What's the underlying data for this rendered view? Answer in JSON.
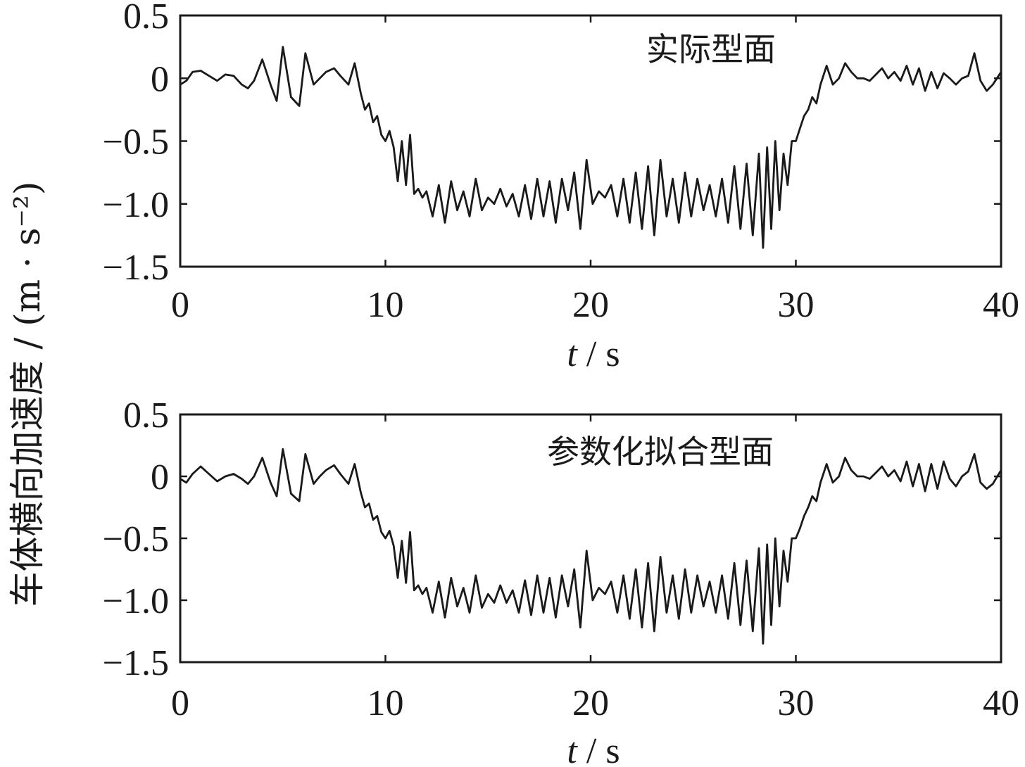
{
  "chart_data": [
    {
      "type": "line",
      "annotation": "实际型面",
      "xlabel_var": "t",
      "xlabel_unit": " / s",
      "ylabel": "车体横向加速度 / (m · s⁻²)",
      "xlim": [
        0,
        40
      ],
      "ylim": [
        -1.5,
        0.5
      ],
      "xticks": [
        "0",
        "10",
        "20",
        "30",
        "40"
      ],
      "yticks": [
        "0.5",
        "0",
        "−0.5",
        "−1.0",
        "−1.5"
      ],
      "xtick_values": [
        0,
        10,
        20,
        30,
        40
      ],
      "ytick_values": [
        0.5,
        0,
        -0.5,
        -1.0,
        -1.5
      ],
      "color": "#1a1a1a",
      "series": [
        {
          "x": [
            0,
            0.3,
            0.6,
            1.0,
            1.4,
            1.8,
            2.2,
            2.6,
            3.0,
            3.3,
            3.6,
            4.0,
            4.4,
            4.7,
            5.0,
            5.4,
            5.8,
            6.1,
            6.5,
            6.8,
            7.1,
            7.5,
            7.8,
            8.2,
            8.5,
            8.8,
            9.0,
            9.2,
            9.4,
            9.6,
            9.8,
            10.0,
            10.2,
            10.4,
            10.6,
            10.8,
            11.0,
            11.2,
            11.4,
            11.6,
            11.8,
            12.0,
            12.3,
            12.6,
            12.9,
            13.2,
            13.5,
            13.8,
            14.1,
            14.4,
            14.7,
            15.0,
            15.3,
            15.6,
            15.9,
            16.2,
            16.5,
            16.8,
            17.1,
            17.4,
            17.7,
            18.0,
            18.3,
            18.6,
            18.9,
            19.2,
            19.5,
            19.8,
            20.1,
            20.4,
            20.7,
            21.0,
            21.3,
            21.6,
            21.9,
            22.2,
            22.5,
            22.8,
            23.1,
            23.4,
            23.7,
            24.0,
            24.3,
            24.6,
            24.9,
            25.2,
            25.5,
            25.8,
            26.1,
            26.4,
            26.7,
            27.0,
            27.3,
            27.6,
            27.9,
            28.2,
            28.4,
            28.6,
            28.8,
            29.0,
            29.2,
            29.4,
            29.6,
            29.8,
            30.0,
            30.2,
            30.4,
            30.6,
            30.8,
            31.0,
            31.2,
            31.5,
            31.8,
            32.1,
            32.4,
            32.7,
            33.0,
            33.3,
            33.6,
            33.9,
            34.2,
            34.5,
            34.8,
            35.1,
            35.4,
            35.7,
            36.0,
            36.3,
            36.6,
            36.9,
            37.2,
            37.5,
            37.8,
            38.1,
            38.4,
            38.7,
            39.0,
            39.3,
            39.6,
            40.0
          ],
          "y": [
            -0.05,
            -0.02,
            0.05,
            0.06,
            0.02,
            -0.02,
            0.03,
            0.02,
            -0.05,
            -0.08,
            -0.02,
            0.15,
            -0.05,
            -0.18,
            0.25,
            -0.15,
            -0.22,
            0.2,
            -0.05,
            0.0,
            0.05,
            0.08,
            0.02,
            -0.05,
            0.12,
            -0.12,
            -0.25,
            -0.2,
            -0.35,
            -0.3,
            -0.45,
            -0.5,
            -0.42,
            -0.55,
            -0.82,
            -0.5,
            -0.85,
            -0.45,
            -0.92,
            -0.88,
            -0.95,
            -0.9,
            -1.1,
            -0.85,
            -1.15,
            -0.82,
            -1.05,
            -0.9,
            -1.1,
            -0.8,
            -1.05,
            -0.95,
            -1.0,
            -0.88,
            -1.02,
            -0.92,
            -1.1,
            -0.85,
            -1.12,
            -0.8,
            -1.1,
            -0.82,
            -1.15,
            -0.8,
            -1.05,
            -0.75,
            -1.2,
            -0.65,
            -1.0,
            -0.9,
            -0.95,
            -0.85,
            -1.1,
            -0.8,
            -1.15,
            -0.75,
            -1.2,
            -0.7,
            -1.25,
            -0.65,
            -1.1,
            -0.8,
            -1.15,
            -0.75,
            -1.1,
            -0.8,
            -1.05,
            -0.85,
            -1.1,
            -0.8,
            -1.15,
            -0.7,
            -1.2,
            -0.68,
            -1.25,
            -0.6,
            -1.35,
            -0.55,
            -1.2,
            -0.5,
            -1.05,
            -0.6,
            -0.85,
            -0.5,
            -0.5,
            -0.4,
            -0.3,
            -0.25,
            -0.15,
            -0.2,
            -0.05,
            0.1,
            -0.05,
            0.0,
            0.12,
            0.05,
            0.0,
            0.0,
            -0.02,
            0.03,
            0.08,
            0.0,
            0.05,
            -0.02,
            0.1,
            -0.05,
            0.08,
            -0.1,
            0.05,
            -0.08,
            0.04,
            0.0,
            -0.05,
            0.0,
            0.02,
            0.2,
            -0.02,
            -0.1,
            -0.05,
            0.05
          ]
        }
      ]
    },
    {
      "type": "line",
      "annotation": "参数化拟合型面",
      "xlabel_var": "t",
      "xlabel_unit": " / s",
      "xlim": [
        0,
        40
      ],
      "ylim": [
        -1.5,
        0.5
      ],
      "xticks": [
        "0",
        "10",
        "20",
        "30",
        "40"
      ],
      "yticks": [
        "0.5",
        "0",
        "−0.5",
        "−1.0",
        "−1.5"
      ],
      "xtick_values": [
        0,
        10,
        20,
        30,
        40
      ],
      "ytick_values": [
        0.5,
        0,
        -0.5,
        -1.0,
        -1.5
      ],
      "color": "#1a1a1a",
      "series": [
        {
          "x": [
            0,
            0.3,
            0.6,
            1.0,
            1.4,
            1.8,
            2.2,
            2.6,
            3.0,
            3.3,
            3.6,
            4.0,
            4.4,
            4.7,
            5.0,
            5.4,
            5.8,
            6.1,
            6.5,
            6.8,
            7.1,
            7.5,
            7.8,
            8.2,
            8.5,
            8.8,
            9.0,
            9.2,
            9.4,
            9.6,
            9.8,
            10.0,
            10.2,
            10.4,
            10.6,
            10.8,
            11.0,
            11.2,
            11.4,
            11.6,
            11.8,
            12.0,
            12.3,
            12.6,
            12.9,
            13.2,
            13.5,
            13.8,
            14.1,
            14.4,
            14.7,
            15.0,
            15.3,
            15.6,
            15.9,
            16.2,
            16.5,
            16.8,
            17.1,
            17.4,
            17.7,
            18.0,
            18.3,
            18.6,
            18.9,
            19.2,
            19.5,
            19.8,
            20.1,
            20.4,
            20.7,
            21.0,
            21.3,
            21.6,
            21.9,
            22.2,
            22.5,
            22.8,
            23.1,
            23.4,
            23.7,
            24.0,
            24.3,
            24.6,
            24.9,
            25.2,
            25.5,
            25.8,
            26.1,
            26.4,
            26.7,
            27.0,
            27.3,
            27.6,
            27.9,
            28.2,
            28.4,
            28.6,
            28.8,
            29.0,
            29.2,
            29.4,
            29.6,
            29.8,
            30.0,
            30.2,
            30.4,
            30.6,
            30.8,
            31.0,
            31.2,
            31.5,
            31.8,
            32.1,
            32.4,
            32.7,
            33.0,
            33.3,
            33.6,
            33.9,
            34.2,
            34.5,
            34.8,
            35.1,
            35.4,
            35.7,
            36.0,
            36.3,
            36.6,
            36.9,
            37.2,
            37.5,
            37.8,
            38.1,
            38.4,
            38.7,
            39.0,
            39.3,
            39.6,
            40.0
          ],
          "y": [
            -0.02,
            -0.05,
            0.02,
            0.08,
            0.02,
            -0.04,
            0.0,
            0.02,
            -0.02,
            -0.06,
            0.0,
            0.15,
            -0.05,
            -0.16,
            0.22,
            -0.14,
            -0.2,
            0.18,
            -0.06,
            0.0,
            0.05,
            0.09,
            0.02,
            -0.06,
            0.1,
            -0.13,
            -0.25,
            -0.22,
            -0.35,
            -0.32,
            -0.45,
            -0.5,
            -0.44,
            -0.56,
            -0.82,
            -0.52,
            -0.86,
            -0.45,
            -0.92,
            -0.88,
            -0.95,
            -0.9,
            -1.1,
            -0.85,
            -1.14,
            -0.82,
            -1.05,
            -0.9,
            -1.1,
            -0.8,
            -1.06,
            -0.95,
            -1.02,
            -0.88,
            -1.02,
            -0.92,
            -1.1,
            -0.84,
            -1.12,
            -0.8,
            -1.1,
            -0.82,
            -1.14,
            -0.8,
            -1.05,
            -0.75,
            -1.22,
            -0.6,
            -1.0,
            -0.9,
            -0.95,
            -0.85,
            -1.1,
            -0.8,
            -1.15,
            -0.75,
            -1.22,
            -0.7,
            -1.25,
            -0.65,
            -1.1,
            -0.8,
            -1.15,
            -0.75,
            -1.1,
            -0.8,
            -1.05,
            -0.85,
            -1.1,
            -0.8,
            -1.15,
            -0.7,
            -1.2,
            -0.68,
            -1.25,
            -0.58,
            -1.35,
            -0.55,
            -1.2,
            -0.5,
            -1.05,
            -0.6,
            -0.85,
            -0.5,
            -0.5,
            -0.42,
            -0.32,
            -0.25,
            -0.16,
            -0.2,
            -0.05,
            0.1,
            -0.05,
            0.0,
            0.15,
            0.05,
            0.0,
            0.0,
            -0.02,
            0.03,
            0.08,
            0.0,
            0.05,
            -0.04,
            0.12,
            -0.08,
            0.1,
            -0.12,
            0.1,
            -0.1,
            0.12,
            -0.02,
            -0.08,
            0.0,
            0.04,
            0.18,
            -0.05,
            -0.1,
            -0.06,
            0.05
          ]
        }
      ]
    }
  ]
}
